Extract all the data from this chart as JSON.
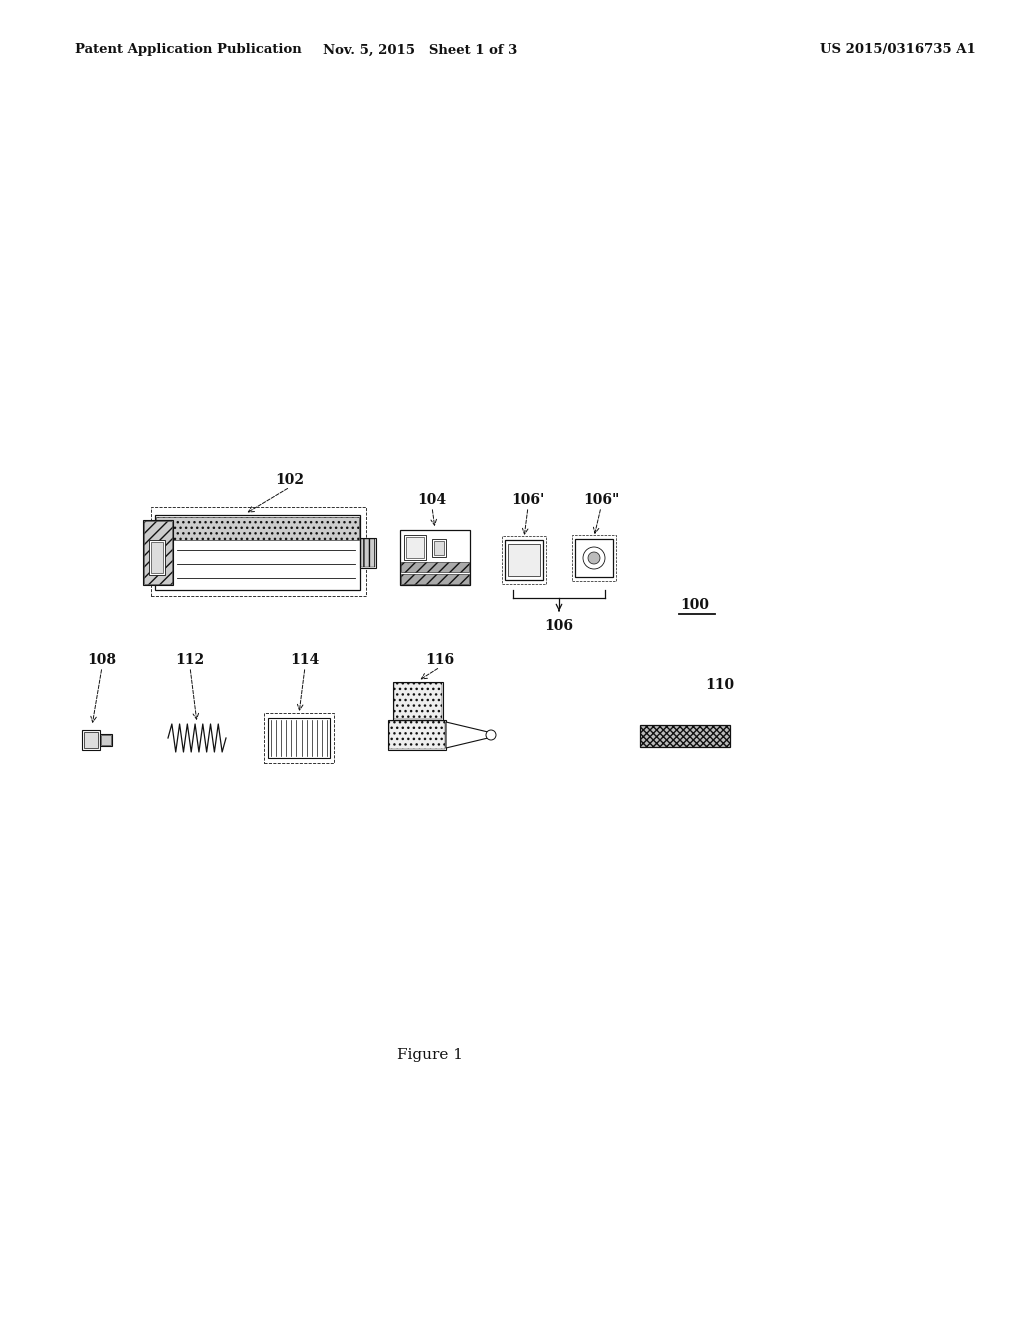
{
  "bg_color": "#ffffff",
  "text_color": "#111111",
  "header_left": "Patent Application Publication",
  "header_mid": "Nov. 5, 2015   Sheet 1 of 3",
  "header_right": "US 2015/0316735 A1",
  "figure_caption": "Figure 1",
  "fig_width": 10.24,
  "fig_height": 13.2,
  "dpi": 100
}
